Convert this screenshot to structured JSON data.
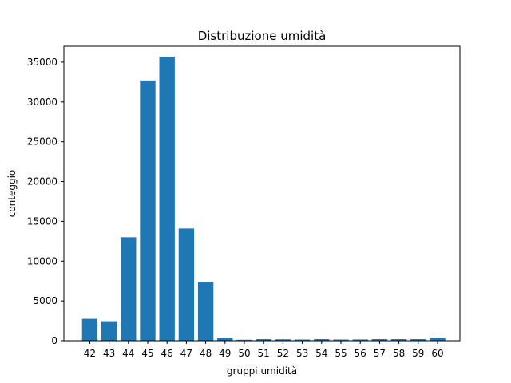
{
  "chart_data": {
    "type": "bar",
    "title": "Distribuzione umidità",
    "xlabel": "gruppi umidità",
    "ylabel": "conteggio",
    "categories": [
      "42",
      "43",
      "44",
      "45",
      "46",
      "47",
      "48",
      "49",
      "50",
      "51",
      "52",
      "53",
      "54",
      "55",
      "56",
      "57",
      "58",
      "59",
      "60"
    ],
    "values": [
      2750,
      2450,
      13000,
      32700,
      35700,
      14100,
      7400,
      320,
      120,
      200,
      180,
      150,
      200,
      150,
      160,
      200,
      200,
      200,
      350
    ],
    "ylim": [
      0,
      37000
    ],
    "yticks": [
      0,
      5000,
      10000,
      15000,
      20000,
      25000,
      30000,
      35000
    ],
    "grid": false,
    "bar_color": "#1f77b4"
  }
}
